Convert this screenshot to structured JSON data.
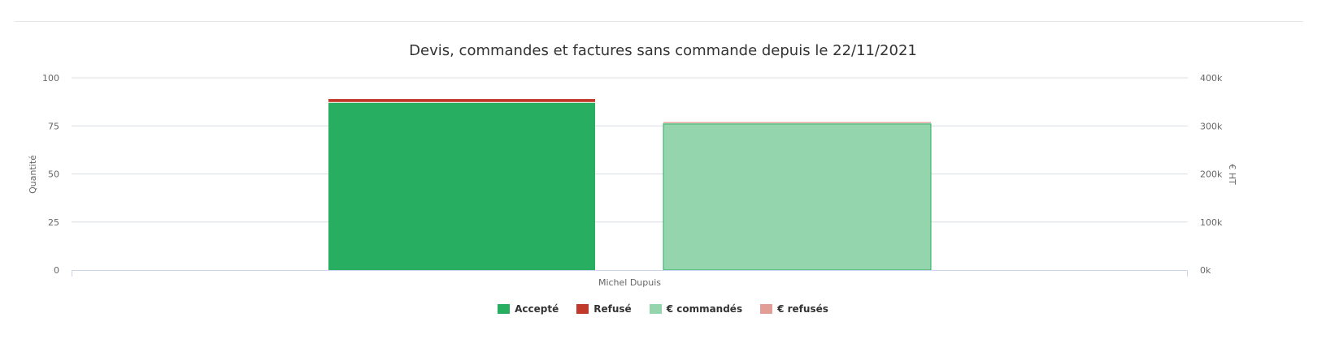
{
  "chart_data": {
    "type": "bar",
    "title": "Devis, commandes et factures sans commande depuis le 22/11/2021",
    "categories": [
      "Michel Dupuis"
    ],
    "y_left": {
      "label": "Quantité",
      "ylim": [
        0,
        100
      ],
      "ticks": [
        "0",
        "25",
        "50",
        "75",
        "100"
      ]
    },
    "y_right": {
      "label": "€ HT",
      "ylim": [
        0,
        400000
      ],
      "ticks": [
        "0k",
        "100k",
        "200k",
        "300k",
        "400k"
      ]
    },
    "grid": true,
    "legend_position": "bottom-center",
    "series": [
      {
        "name": "Accepté",
        "axis": "left",
        "stack": "quantite",
        "values": [
          87
        ],
        "color": "#27ae60"
      },
      {
        "name": "Refusé",
        "axis": "left",
        "stack": "quantite",
        "values": [
          2
        ],
        "color": "#c0392b"
      },
      {
        "name": "€ commandés",
        "axis": "right",
        "stack": "montant",
        "values": [
          304000
        ],
        "color": "#95d5ae"
      },
      {
        "name": "€ refusés",
        "axis": "right",
        "stack": "montant",
        "values": [
          4000
        ],
        "color": "#e29d96"
      }
    ]
  }
}
